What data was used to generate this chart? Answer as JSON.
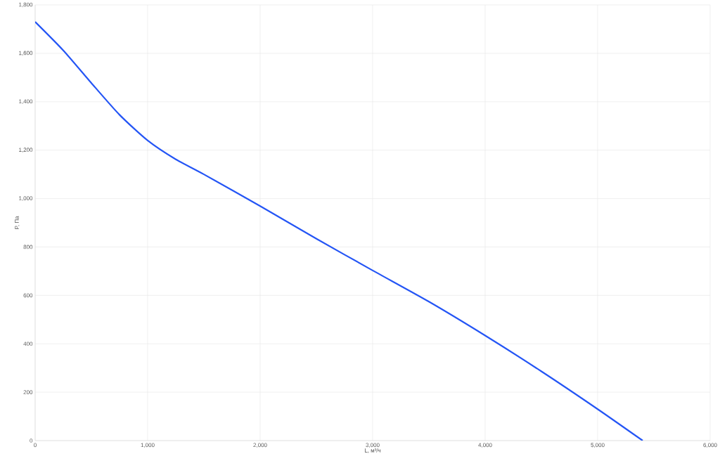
{
  "chart_data": {
    "type": "line",
    "xlabel": "L, м³/ч",
    "ylabel": "P, Па",
    "x": [
      0,
      250,
      500,
      750,
      1000,
      1250,
      1500,
      2000,
      2500,
      3000,
      3500,
      4000,
      4500,
      5000,
      5400
    ],
    "series": [
      {
        "color": "#2455f5",
        "values": [
          1730,
          1612,
          1477,
          1346,
          1240,
          1162,
          1100,
          969,
          834,
          703,
          574,
          434,
          286,
          130,
          0
        ]
      }
    ],
    "xlim": [
      0,
      6000
    ],
    "ylim": [
      0,
      1800
    ],
    "xticks": [
      {
        "value": 0,
        "label": "0"
      },
      {
        "value": 1000,
        "label": "1,000"
      },
      {
        "value": 2000,
        "label": "2,000"
      },
      {
        "value": 3000,
        "label": "3,000"
      },
      {
        "value": 4000,
        "label": "4,000"
      },
      {
        "value": 5000,
        "label": "5,000"
      },
      {
        "value": 6000,
        "label": "6,000"
      }
    ],
    "yticks": [
      {
        "value": 0,
        "label": "0"
      },
      {
        "value": 200,
        "label": "200"
      },
      {
        "value": 400,
        "label": "400"
      },
      {
        "value": 600,
        "label": "600"
      },
      {
        "value": 800,
        "label": "800"
      },
      {
        "value": 1000,
        "label": "1,000"
      },
      {
        "value": 1200,
        "label": "1,200"
      },
      {
        "value": 1400,
        "label": "1,400"
      },
      {
        "value": 1600,
        "label": "1,600"
      },
      {
        "value": 1800,
        "label": "1,800"
      }
    ],
    "grid": true,
    "marker": "none",
    "line_style": "solid"
  }
}
